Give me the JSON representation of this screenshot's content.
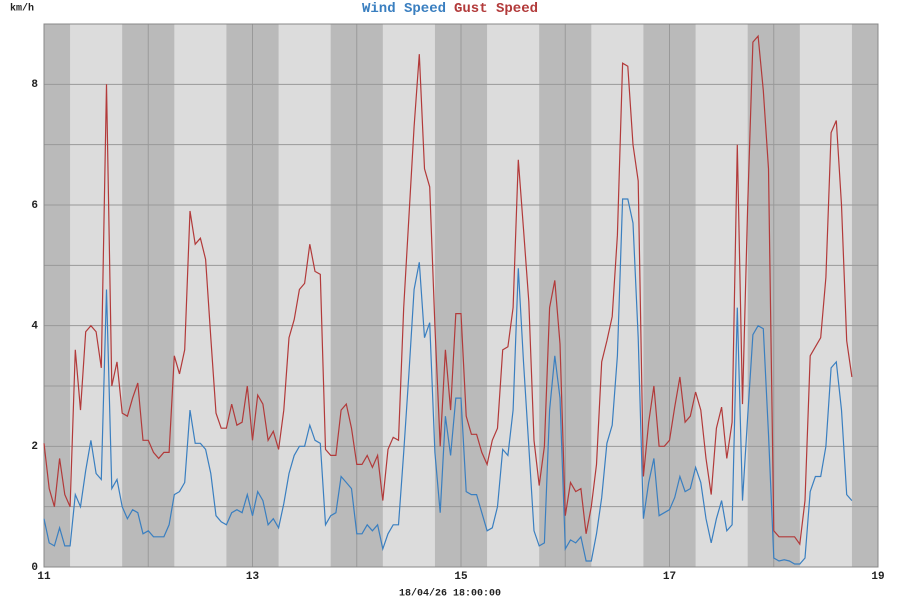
{
  "chart_data": {
    "type": "line",
    "y_label": "km/h",
    "x_label": "18/04/26 18:00:00",
    "xlim": [
      11,
      19
    ],
    "xticks": [
      11,
      13,
      15,
      17,
      19
    ],
    "xminor": [
      12,
      14,
      16,
      18
    ],
    "ylim": [
      0,
      9
    ],
    "yticks": [
      0,
      2,
      4,
      6,
      8
    ],
    "yminor": [
      1,
      3,
      5,
      7,
      9
    ],
    "grid": true,
    "x": [
      11,
      11.05,
      11.1,
      11.15,
      11.2,
      11.25,
      11.3,
      11.35,
      11.4,
      11.45,
      11.5,
      11.55,
      11.6,
      11.65,
      11.7,
      11.75,
      11.8,
      11.85,
      11.9,
      11.95,
      12,
      12.05,
      12.1,
      12.15,
      12.2,
      12.25,
      12.3,
      12.35,
      12.4,
      12.45,
      12.5,
      12.55,
      12.6,
      12.65,
      12.7,
      12.75,
      12.8,
      12.85,
      12.9,
      12.95,
      13,
      13.05,
      13.1,
      13.15,
      13.2,
      13.25,
      13.3,
      13.35,
      13.4,
      13.45,
      13.5,
      13.55,
      13.6,
      13.65,
      13.7,
      13.75,
      13.8,
      13.85,
      13.9,
      13.95,
      14,
      14.05,
      14.1,
      14.15,
      14.2,
      14.25,
      14.3,
      14.35,
      14.4,
      14.45,
      14.5,
      14.55,
      14.6,
      14.65,
      14.7,
      14.75,
      14.8,
      14.85,
      14.9,
      14.95,
      15,
      15.05,
      15.1,
      15.15,
      15.2,
      15.25,
      15.3,
      15.35,
      15.4,
      15.45,
      15.5,
      15.55,
      15.6,
      15.65,
      15.7,
      15.75,
      15.8,
      15.85,
      15.9,
      15.95,
      16,
      16.05,
      16.1,
      16.15,
      16.2,
      16.25,
      16.3,
      16.35,
      16.4,
      16.45,
      16.5,
      16.55,
      16.6,
      16.65,
      16.7,
      16.75,
      16.8,
      16.85,
      16.9,
      16.95,
      17,
      17.05,
      17.1,
      17.15,
      17.2,
      17.25,
      17.3,
      17.35,
      17.4,
      17.45,
      17.5,
      17.55,
      17.6,
      17.65,
      17.7,
      17.75,
      17.8,
      17.85,
      17.9,
      17.95,
      18,
      18.05,
      18.1,
      18.15,
      18.2,
      18.25,
      18.3,
      18.35,
      18.4,
      18.45,
      18.5,
      18.55,
      18.6,
      18.65,
      18.7,
      18.75
    ],
    "series": [
      {
        "name": "Wind Speed",
        "color": "#3a7fc0",
        "values": [
          0.8,
          0.4,
          0.35,
          0.65,
          0.35,
          0.35,
          1.2,
          1.0,
          1.6,
          2.1,
          1.55,
          1.45,
          4.6,
          1.3,
          1.45,
          1.0,
          0.8,
          0.95,
          0.9,
          0.55,
          0.6,
          0.5,
          0.5,
          0.5,
          0.7,
          1.2,
          1.25,
          1.4,
          2.6,
          2.05,
          2.05,
          1.95,
          1.55,
          0.85,
          0.75,
          0.7,
          0.9,
          0.95,
          0.9,
          1.2,
          0.85,
          1.25,
          1.1,
          0.7,
          0.8,
          0.65,
          1.05,
          1.55,
          1.85,
          2.0,
          2.0,
          2.35,
          2.1,
          2.05,
          0.7,
          0.85,
          0.9,
          1.5,
          1.4,
          1.3,
          0.55,
          0.55,
          0.7,
          0.6,
          0.7,
          0.3,
          0.55,
          0.7,
          0.7,
          1.9,
          3.2,
          4.6,
          5.05,
          3.8,
          4.05,
          1.9,
          0.9,
          2.5,
          1.85,
          2.8,
          2.8,
          1.25,
          1.2,
          1.2,
          0.9,
          0.6,
          0.65,
          1.0,
          1.95,
          1.85,
          2.6,
          4.95,
          3.4,
          2.0,
          0.6,
          0.35,
          0.4,
          2.6,
          3.5,
          2.8,
          0.3,
          0.45,
          0.4,
          0.5,
          0.1,
          0.1,
          0.55,
          1.15,
          2.05,
          2.35,
          3.5,
          6.1,
          6.1,
          5.7,
          3.8,
          0.8,
          1.4,
          1.8,
          0.85,
          0.9,
          0.95,
          1.15,
          1.5,
          1.25,
          1.3,
          1.65,
          1.4,
          0.8,
          0.4,
          0.8,
          1.1,
          0.6,
          0.7,
          4.3,
          1.1,
          2.5,
          3.85,
          4.0,
          3.95,
          2.2,
          0.15,
          0.1,
          0.12,
          0.1,
          0.05,
          0.05,
          0.15,
          1.25,
          1.5,
          1.5,
          2.0,
          3.3,
          3.4,
          2.6,
          1.2,
          1.1
        ]
      },
      {
        "name": "Gust Speed",
        "color": "#b23a3a",
        "values": [
          2.05,
          1.3,
          1.0,
          1.8,
          1.2,
          1.0,
          3.6,
          2.6,
          3.9,
          4.0,
          3.9,
          3.3,
          8.0,
          3.0,
          3.4,
          2.55,
          2.5,
          2.8,
          3.05,
          2.1,
          2.1,
          1.9,
          1.8,
          1.9,
          1.9,
          3.5,
          3.2,
          3.6,
          5.9,
          5.35,
          5.45,
          5.1,
          3.8,
          2.55,
          2.3,
          2.3,
          2.7,
          2.35,
          2.4,
          3.0,
          2.1,
          2.85,
          2.7,
          2.1,
          2.25,
          1.95,
          2.6,
          3.8,
          4.1,
          4.6,
          4.7,
          5.35,
          4.9,
          4.85,
          1.95,
          1.85,
          1.85,
          2.6,
          2.7,
          2.3,
          1.7,
          1.7,
          1.85,
          1.65,
          1.85,
          1.1,
          1.95,
          2.15,
          2.1,
          4.3,
          5.8,
          7.3,
          8.5,
          6.6,
          6.3,
          4.0,
          2.0,
          3.6,
          2.6,
          4.2,
          4.2,
          2.5,
          2.2,
          2.2,
          1.9,
          1.7,
          2.1,
          2.3,
          3.6,
          3.65,
          4.3,
          6.75,
          5.6,
          4.4,
          2.1,
          1.35,
          2.0,
          4.3,
          4.75,
          3.7,
          0.85,
          1.4,
          1.25,
          1.3,
          0.55,
          1.0,
          1.7,
          3.4,
          3.75,
          4.15,
          5.5,
          8.35,
          8.3,
          7.0,
          6.4,
          1.5,
          2.4,
          3.0,
          2.0,
          2.0,
          2.1,
          2.65,
          3.15,
          2.4,
          2.5,
          2.9,
          2.6,
          1.8,
          1.2,
          2.3,
          2.65,
          1.8,
          2.4,
          7.0,
          2.7,
          6.0,
          8.7,
          8.8,
          7.9,
          6.6,
          0.6,
          0.5,
          0.5,
          0.5,
          0.5,
          0.38,
          1.1,
          3.5,
          3.65,
          3.8,
          4.8,
          7.2,
          7.4,
          6.0,
          3.75,
          3.15
        ]
      }
    ]
  }
}
